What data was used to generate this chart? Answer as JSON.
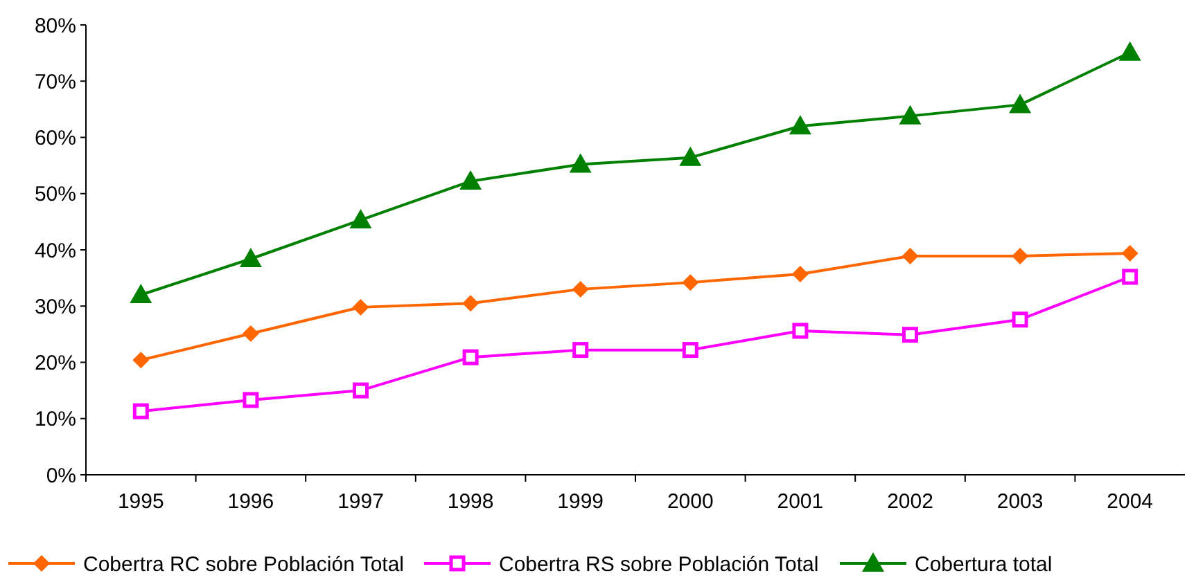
{
  "chart_data": {
    "type": "line",
    "categories": [
      "1995",
      "1996",
      "1997",
      "1998",
      "1999",
      "2000",
      "2001",
      "2002",
      "2003",
      "2004"
    ],
    "ylim": [
      0,
      80
    ],
    "yticks": [
      {
        "value": 0,
        "label": "0%"
      },
      {
        "value": 10,
        "label": "10%"
      },
      {
        "value": 20,
        "label": "20%"
      },
      {
        "value": 30,
        "label": "30%"
      },
      {
        "value": 40,
        "label": "40%"
      },
      {
        "value": 50,
        "label": "50%"
      },
      {
        "value": 60,
        "label": "60%"
      },
      {
        "value": 70,
        "label": "70%"
      },
      {
        "value": 80,
        "label": "80%"
      }
    ],
    "grid": false,
    "legend": "bottom",
    "line_style": "solid",
    "series": [
      {
        "name": "Cobertra RC sobre Población Total",
        "color": "#ff6600",
        "marker": "diamond",
        "values": [
          20.4,
          25.1,
          29.8,
          30.5,
          33,
          34.2,
          35.7,
          38.9,
          38.9,
          39.4
        ]
      },
      {
        "name": "Cobertra RS sobre Población Total",
        "color": "#ff00ff",
        "marker": "square",
        "values": [
          11.3,
          13.3,
          15,
          20.9,
          22.2,
          22.2,
          25.6,
          24.9,
          27.6,
          35.2
        ]
      },
      {
        "name": "Cobertura total",
        "color": "#008000",
        "marker": "triangle",
        "values": [
          32,
          38.4,
          45.3,
          52.2,
          55.2,
          56.4,
          62,
          63.8,
          65.8,
          75.1
        ]
      }
    ]
  }
}
